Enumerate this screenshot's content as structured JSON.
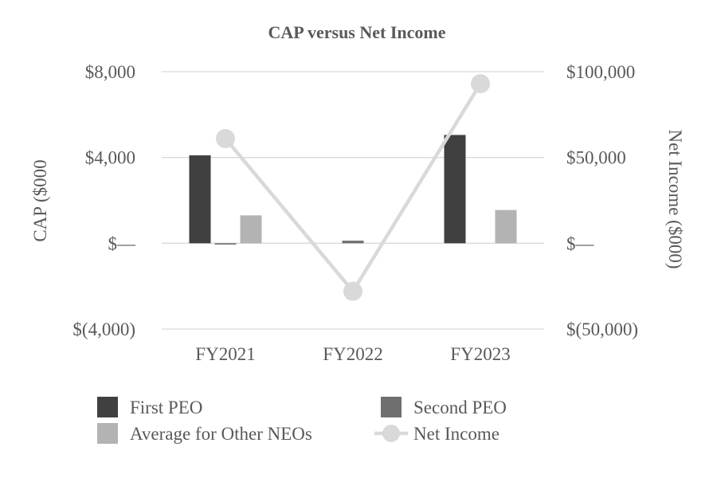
{
  "chart_data": {
    "type": "bar",
    "title": "CAP versus Net Income",
    "categories": [
      "FY2021",
      "FY2022",
      "FY2023"
    ],
    "ylabel": "CAP ($000",
    "y2label": "Net Income ($000)",
    "ylim": [
      -4000,
      8000
    ],
    "y2lim": [
      -50000,
      100000
    ],
    "yticks": [
      -4000,
      0,
      4000,
      8000
    ],
    "ytick_labels": [
      "$(4,000)",
      "$—",
      "$4,000",
      "$8,000"
    ],
    "y2ticks": [
      -50000,
      0,
      50000,
      100000
    ],
    "y2tick_labels": [
      "$(50,000)",
      "$—",
      "$50,000",
      "$100,000"
    ],
    "grid": true,
    "legend_position": "bottom",
    "series": [
      {
        "name": "First PEO",
        "kind": "bar",
        "axis": "left",
        "color": "#404040",
        "values": [
          4100,
          null,
          5050
        ]
      },
      {
        "name": "Second PEO",
        "kind": "bar",
        "axis": "left",
        "color": "#6f6f6f",
        "values": [
          -60,
          120,
          null
        ]
      },
      {
        "name": "Average for Other NEOs",
        "kind": "bar",
        "axis": "left",
        "color": "#b3b3b3",
        "values": [
          1300,
          null,
          1550
        ]
      },
      {
        "name": "Net Income",
        "kind": "line",
        "axis": "right",
        "color": "#d9d9d9",
        "values": [
          61000,
          -28000,
          93000
        ]
      }
    ]
  }
}
